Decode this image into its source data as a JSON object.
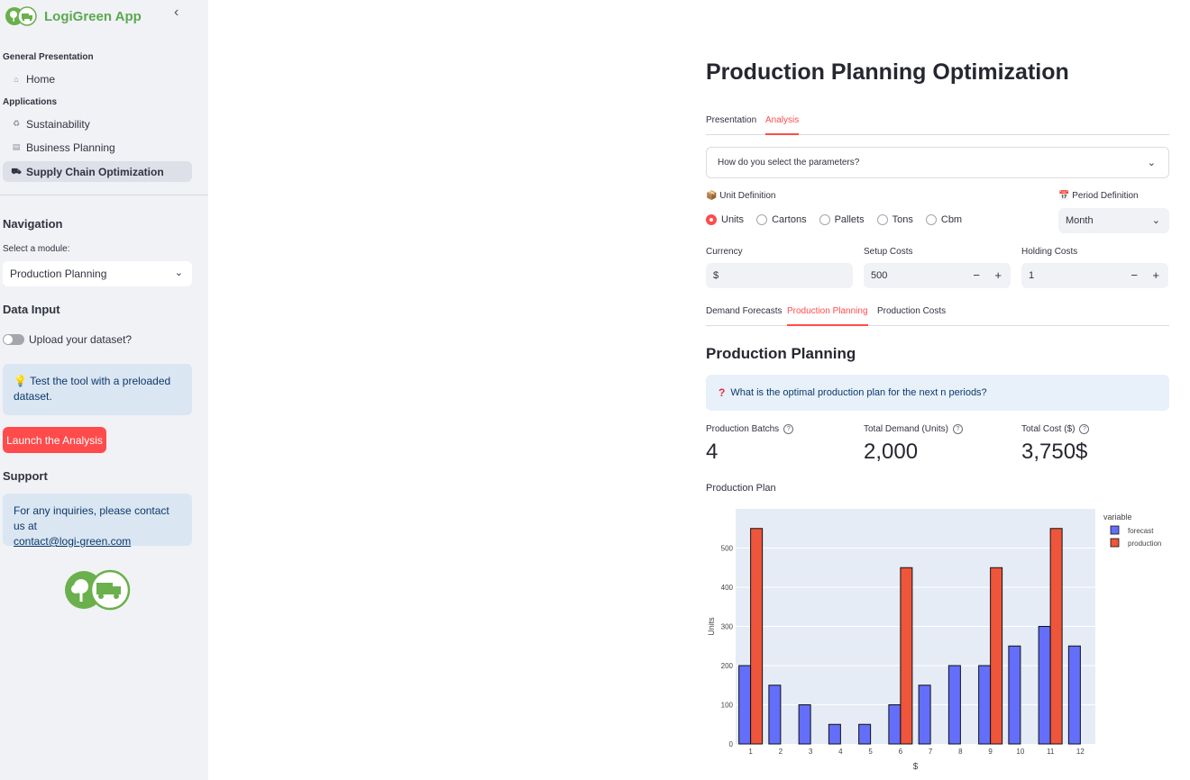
{
  "app": {
    "title": "LogiGreen App"
  },
  "sidebar": {
    "general_section": "General Presentation",
    "home": "Home",
    "applications_section": "Applications",
    "items": [
      {
        "label": "Sustainability",
        "icon": "recycle-icon"
      },
      {
        "label": "Business Planning",
        "icon": "briefcase-icon"
      },
      {
        "label": "Supply Chain Optimization",
        "icon": "truck-icon",
        "active": true
      }
    ],
    "navigation_heading": "Navigation",
    "module_label": "Select a module:",
    "module_value": "Production Planning",
    "data_input_heading": "Data Input",
    "upload_label": "Upload your dataset?",
    "upload_enabled": false,
    "preloaded_note": "Test the tool with a preloaded dataset.",
    "launch_button": "Launch the Analysis",
    "support_heading": "Support",
    "support_text": "For any inquiries, please contact us at",
    "support_email": "contact@logi-green.com"
  },
  "main": {
    "title": "Production Planning Optimization",
    "tabs": [
      {
        "label": "Presentation",
        "active": false
      },
      {
        "label": "Analysis",
        "active": true
      }
    ],
    "expander": "How do you select the parameters?",
    "unit_definition_label": "Unit Definition",
    "units": [
      "Units",
      "Cartons",
      "Pallets",
      "Tons",
      "Cbm"
    ],
    "unit_selected": "Units",
    "period_definition_label": "Period Definition",
    "period_value": "Month",
    "currency_label": "Currency",
    "currency_value": "$",
    "setup_costs_label": "Setup Costs",
    "setup_costs_value": "500",
    "holding_costs_label": "Holding Costs",
    "holding_costs_value": "1",
    "result_tabs": [
      {
        "label": "Demand Forecasts",
        "active": false
      },
      {
        "label": "Production Planning",
        "active": true
      },
      {
        "label": "Production Costs",
        "active": false
      }
    ],
    "section_heading": "Production Planning",
    "question": "What is the optimal production plan for the next n periods?",
    "metrics": [
      {
        "label": "Production Batchs",
        "value": "4"
      },
      {
        "label": "Total Demand (Units)",
        "value": "2,000"
      },
      {
        "label": "Total Cost ($)",
        "value": "3,750$"
      }
    ],
    "chart_title": "Production Plan"
  },
  "colors": {
    "brand_green": "#5ba850",
    "accent_red": "#ff4b4b",
    "forecast": "#636efa",
    "production": "#ef553b"
  },
  "chart_data": {
    "type": "bar",
    "categories": [
      "1",
      "2",
      "3",
      "4",
      "5",
      "6",
      "7",
      "8",
      "9",
      "10",
      "11",
      "12"
    ],
    "series": [
      {
        "name": "forecast",
        "values": [
          200,
          150,
          100,
          50,
          50,
          100,
          150,
          200,
          200,
          250,
          300,
          250
        ]
      },
      {
        "name": "production",
        "values": [
          550,
          0,
          0,
          0,
          0,
          450,
          0,
          0,
          450,
          0,
          550,
          0
        ]
      }
    ],
    "xlabel": "$",
    "ylabel": "Units",
    "ylim": [
      0,
      600
    ],
    "yticks": [
      0,
      100,
      200,
      300,
      400,
      500
    ],
    "legend_title": "variable",
    "legend_position": "top-right",
    "grid": true
  }
}
